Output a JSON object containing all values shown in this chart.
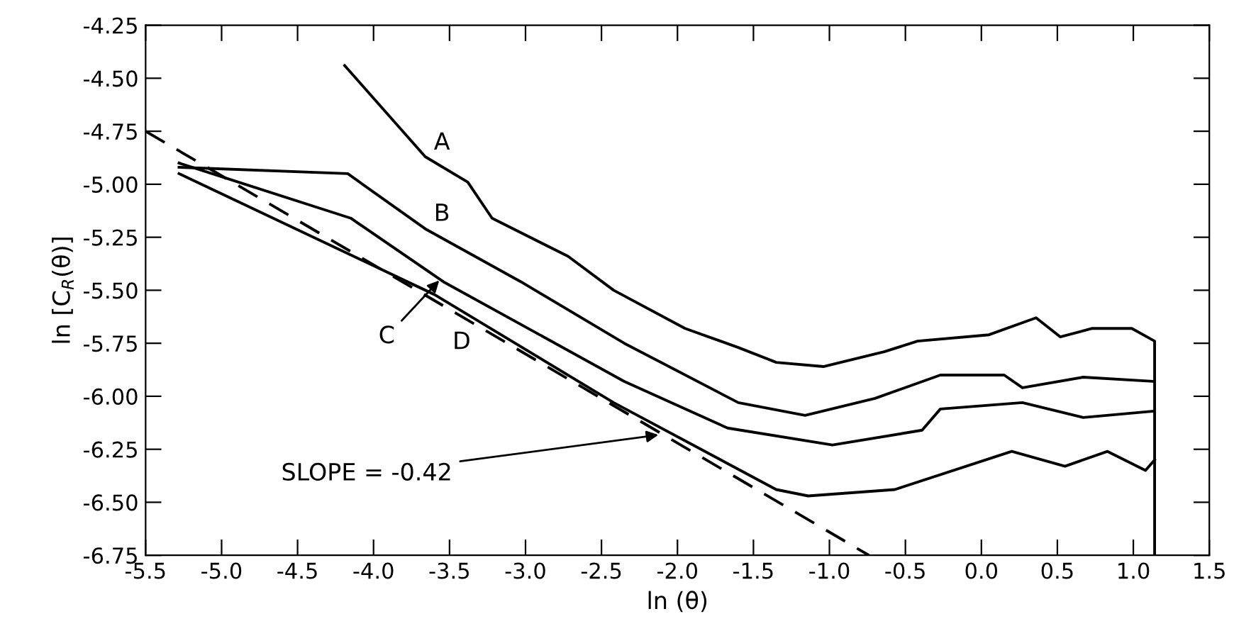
{
  "chart_data": {
    "type": "line",
    "xlabel": "ln (θ)",
    "ylabel": "ln [C$_{R}$(θ)]",
    "xlim": [
      -5.5,
      1.5
    ],
    "ylim": [
      -6.75,
      -4.25
    ],
    "xticks": [
      -5.5,
      {
        "value": -5,
        "label": "-5.0"
      },
      -4.5,
      {
        "value": -4,
        "label": "-4.0"
      },
      -3.5,
      {
        "value": -3,
        "label": "-3.0"
      },
      -2.5,
      {
        "value": -2,
        "label": "-2.0"
      },
      -1.5,
      {
        "value": -1,
        "label": "-1.0"
      },
      -0.5,
      {
        "value": 0,
        "label": "0.0"
      },
      0.5,
      {
        "value": 1,
        "label": "1.0"
      },
      1.5
    ],
    "yticks": [
      {
        "value": -4.25,
        "label": "-4.25"
      },
      {
        "value": -4.5,
        "label": "-4.50"
      },
      {
        "value": -4.75,
        "label": "-4.75"
      },
      {
        "value": -5.0,
        "label": "-5.00"
      },
      {
        "value": -5.25,
        "label": "-5.25"
      },
      {
        "value": -5.5,
        "label": "-5.50"
      },
      {
        "value": -5.75,
        "label": "-5.75"
      },
      {
        "value": -6.0,
        "label": "-6.00"
      },
      {
        "value": -6.25,
        "label": "-6.25"
      },
      {
        "value": -6.5,
        "label": "-6.50"
      },
      {
        "value": -6.75,
        "label": "-6.75"
      }
    ],
    "grid": false,
    "legend": false,
    "series": [
      {
        "name": "A",
        "color": "#000000",
        "x": [
          -4.19,
          -3.66,
          -3.38,
          -3.22,
          -2.72,
          -2.42,
          -1.95,
          -1.6,
          -1.35,
          -1.04,
          -0.64,
          -0.42,
          0.05,
          0.36,
          0.52,
          0.73,
          0.99,
          1.14,
          1.14
        ],
        "values": [
          -4.44,
          -4.87,
          -4.99,
          -5.16,
          -5.34,
          -5.5,
          -5.68,
          -5.77,
          -5.84,
          -5.86,
          -5.79,
          -5.74,
          -5.71,
          -5.63,
          -5.72,
          -5.68,
          -5.68,
          -5.74,
          -6.75
        ]
      },
      {
        "name": "B",
        "color": "#000000",
        "x": [
          -5.28,
          -4.17,
          -3.66,
          -3.03,
          -2.35,
          -1.6,
          -1.16,
          -0.7,
          -0.27,
          0.15,
          0.27,
          0.67,
          1.14
        ],
        "values": [
          -4.92,
          -4.95,
          -5.21,
          -5.46,
          -5.75,
          -6.03,
          -6.09,
          -6.01,
          -5.9,
          -5.9,
          -5.96,
          -5.91,
          -5.93
        ]
      },
      {
        "color": "#000000",
        "x": [
          -5.28,
          -4.15,
          -3.54,
          -2.35,
          -1.67,
          -0.98,
          -0.39,
          -0.27,
          0.27,
          0.67,
          1.14
        ],
        "values": [
          -4.9,
          -5.16,
          -5.46,
          -5.93,
          -6.15,
          -6.23,
          -6.16,
          -6.06,
          -6.03,
          -6.1,
          -6.07
        ]
      },
      {
        "name": "D",
        "color": "#000000",
        "x": [
          -5.28,
          -3.6,
          -2.42,
          -1.35,
          -1.14,
          -0.57,
          0.2,
          0.55,
          0.83,
          1.08,
          1.14
        ],
        "values": [
          -4.95,
          -5.52,
          -6.03,
          -6.44,
          -6.47,
          -6.44,
          -6.26,
          -6.33,
          -6.26,
          -6.35,
          -6.3
        ]
      },
      {
        "color": "#000000",
        "line_style": "dashed",
        "x": [
          -5.5,
          -0.74
        ],
        "values": [
          -4.75,
          -6.75
        ]
      }
    ],
    "annotations": [
      {
        "text": "C",
        "x": -3.55,
        "y": -5.44
      },
      {
        "text": "SLOPE = -0.42",
        "x": -2.1,
        "y": -6.18
      }
    ]
  }
}
